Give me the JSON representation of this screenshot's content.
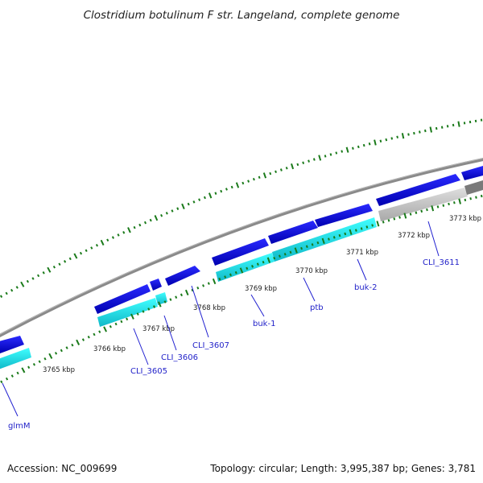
{
  "title": "Clostridium botulinum F str. Langeland, complete genome",
  "footer": {
    "accession": "Accession: NC_009699",
    "topology": "Topology: circular; Length: 3,995,387 bp; Genes: 3,781"
  },
  "kbp_labels": [
    "3765 kbp",
    "3766 kbp",
    "3767 kbp",
    "3768 kbp",
    "3769 kbp",
    "3770 kbp",
    "3771 kbp",
    "3772 kbp",
    "3773 kbp"
  ],
  "gene_labels": [
    "glmM",
    "CLI_3605",
    "CLI_3606",
    "CLI_3607",
    "buk-1",
    "ptb",
    "buk-2",
    "CLI_3611"
  ],
  "colors": {
    "cds_blue": "#1010e6",
    "rna_cyan": "#1ee6ee",
    "grey_feature": "#c4c4c4",
    "backbone": "#8a8a8a",
    "ticks": "#1a7a1a",
    "label_blue": "#1f1fc8"
  }
}
